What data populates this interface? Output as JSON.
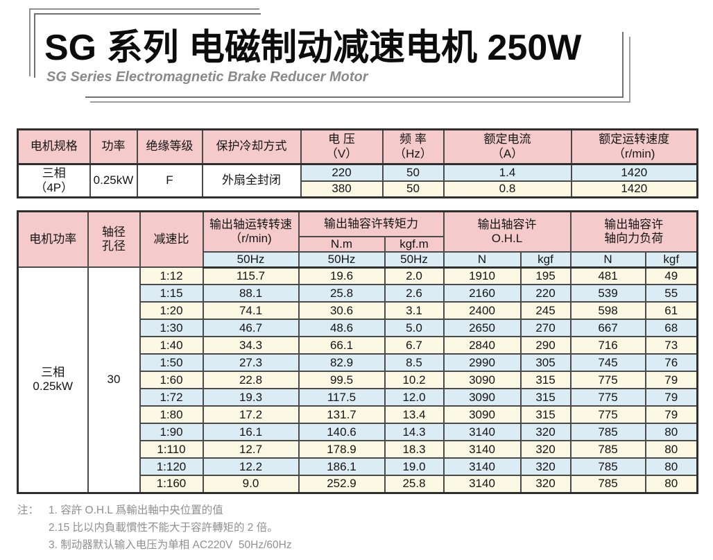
{
  "header": {
    "title": "SG 系列 电磁制动减速电机 250W",
    "subtitle": "SG Series Electromagnetic Brake Reducer Motor"
  },
  "colors": {
    "header_pink": "#f5caca",
    "row_blue": "#dcecf5",
    "row_cream": "#fbf8e3",
    "border_dark": "#2e2e2e",
    "border_inner": "#4a4a4a",
    "note_gray": "#909090"
  },
  "spec_table": {
    "headers": {
      "motor_spec": "电机规格",
      "power": "功率",
      "insulation": "绝缘等级",
      "cooling": "保护冷却方式",
      "voltage_l1": "电 压",
      "voltage_l2": "（V）",
      "frequency_l1": "频 率",
      "frequency_l2": "（Hz）",
      "current_l1": "额定电流",
      "current_l2": "（A）",
      "speed_l1": "额定运转速度",
      "speed_l2": "（r/min)"
    },
    "spec": {
      "motor_spec_l1": "三相",
      "motor_spec_l2": "（4P）",
      "power": "0.25kW",
      "insulation": "F",
      "cooling": "外扇全封闭"
    },
    "rows": [
      {
        "tint": "blue",
        "voltage": "220",
        "frequency": "50",
        "current": "1.4",
        "speed": "1420"
      },
      {
        "tint": "cream",
        "voltage": "380",
        "frequency": "50",
        "current": "0.8",
        "speed": "1420"
      }
    ]
  },
  "perf_table": {
    "headers": {
      "motor_power": "电机功率",
      "shaft_l1": "轴径",
      "shaft_l2": "孔径",
      "ratio": "减速比",
      "output_speed_l1": "输出轴运转转速",
      "output_speed_l2": "（r/min)",
      "torque_group": "输出轴容许转矩力",
      "torque_nm": "N.m",
      "torque_kgfm": "kgf.m",
      "ohl_l1": "输出轴容许",
      "ohl_l2": "O.H.L",
      "axial_l1": "输出轴容许",
      "axial_l2": "轴向力负荷",
      "hz_speed": "50Hz",
      "hz_nm": "50Hz",
      "hz_kgfm": "50Hz",
      "ohl_n": "N",
      "ohl_kgf": "kgf",
      "axial_n": "N",
      "axial_kgf": "kgf"
    },
    "motor_power_l1": "三相",
    "motor_power_l2": "0.25kW",
    "shaft_value": "30",
    "rows": [
      [
        "1:12",
        "115.7",
        "19.6",
        "2.0",
        "1910",
        "195",
        "481",
        "49"
      ],
      [
        "1:15",
        "88.1",
        "25.8",
        "2.6",
        "2160",
        "220",
        "539",
        "55"
      ],
      [
        "1:20",
        "74.1",
        "30.6",
        "3.1",
        "2400",
        "245",
        "598",
        "61"
      ],
      [
        "1:30",
        "46.7",
        "48.6",
        "5.0",
        "2650",
        "270",
        "667",
        "68"
      ],
      [
        "1:40",
        "34.3",
        "66.1",
        "6.7",
        "2840",
        "290",
        "716",
        "73"
      ],
      [
        "1:50",
        "27.3",
        "82.9",
        "8.5",
        "2990",
        "305",
        "745",
        "76"
      ],
      [
        "1:60",
        "22.8",
        "99.5",
        "10.2",
        "3090",
        "315",
        "775",
        "79"
      ],
      [
        "1:72",
        "19.3",
        "117.5",
        "12.0",
        "3090",
        "315",
        "775",
        "79"
      ],
      [
        "1:80",
        "17.2",
        "131.7",
        "13.4",
        "3090",
        "315",
        "775",
        "79"
      ],
      [
        "1:90",
        "16.1",
        "140.6",
        "14.3",
        "3140",
        "320",
        "785",
        "80"
      ],
      [
        "1:110",
        "12.7",
        "178.9",
        "18.3",
        "3140",
        "320",
        "785",
        "80"
      ],
      [
        "1:120",
        "12.2",
        "186.1",
        "19.0",
        "3140",
        "320",
        "785",
        "80"
      ],
      [
        "1:160",
        "9.0",
        "252.9",
        "25.8",
        "3140",
        "320",
        "785",
        "80"
      ]
    ]
  },
  "notes": {
    "prefix": "注：",
    "items": [
      "1. 容許 O.H.L 爲輸出軸中央位置的值",
      "2.15 比以内負載慣性不能大于容許轉矩的 2 倍。",
      "3. 制动器默认输入电压为单相 AC220V  50Hz/60Hz"
    ]
  }
}
